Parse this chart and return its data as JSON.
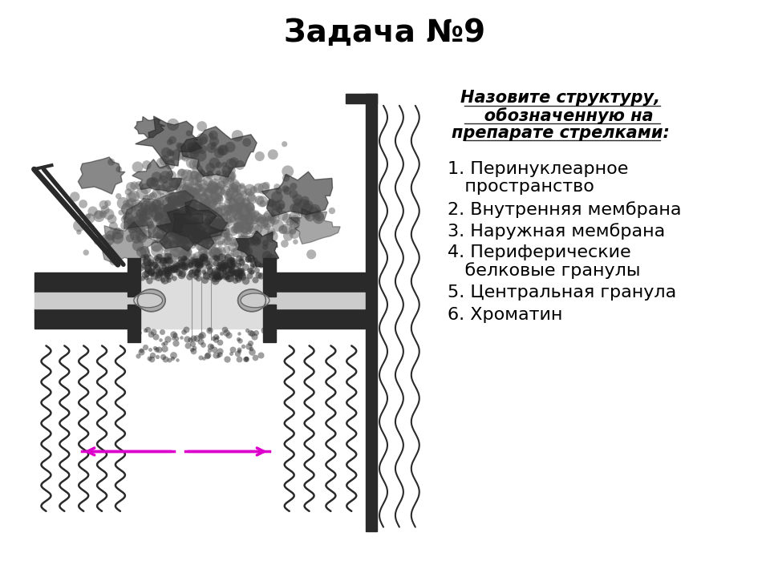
{
  "title": "Задача №9",
  "title_fontsize": 28,
  "title_fontweight": "bold",
  "subtitle_line1": "Назовите структуру,",
  "subtitle_line2": "   обозначенную на",
  "subtitle_line3": "препарате стрелками:",
  "subtitle_fontsize": 15,
  "items": [
    "1. Перинуклеарное",
    "   пространство",
    "2. Внутренняя мембрана",
    "3. Наружная мембрана",
    "4. Периферические",
    "   белковые гранулы",
    "5. Центральная гранула",
    "6. Хроматин"
  ],
  "items_fontsize": 16,
  "bg_color": "#ffffff",
  "text_color": "#000000",
  "arrow_color": "#dd00cc",
  "dark": "#2a2a2a",
  "mid": "#666666",
  "light_gray": "#aaaaaa",
  "very_light": "#cccccc"
}
